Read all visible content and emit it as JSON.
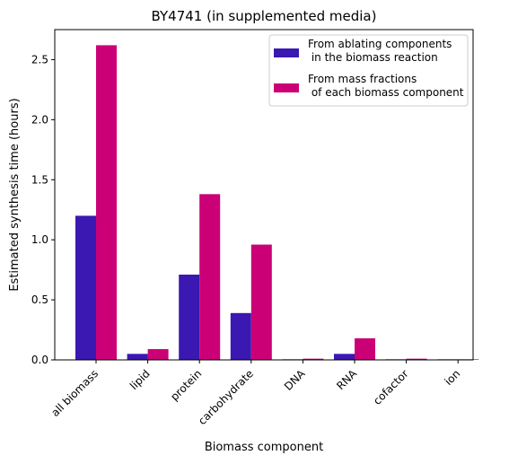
{
  "chart_data": {
    "type": "bar",
    "title": "BY4741 (in supplemented media)",
    "xlabel": "Biomass component",
    "ylabel": "Estimated synthesis time (hours)",
    "categories": [
      "all biomass",
      "lipid",
      "protein",
      "carbohydrate",
      "DNA",
      "RNA",
      "cofactor",
      "ion"
    ],
    "yticks": [
      "0.0",
      "0.5",
      "1.0",
      "1.5",
      "2.0",
      "2.5"
    ],
    "ylim": [
      0,
      2.75
    ],
    "series": [
      {
        "name": "From ablating components\n in the biomass reaction",
        "color": "#3a18b1",
        "values": [
          1.2,
          0.05,
          0.71,
          0.39,
          0.005,
          0.05,
          0.005,
          0.005
        ]
      },
      {
        "name": "From mass fractions\n of each biomass component",
        "color": "#cb0077",
        "values": [
          2.62,
          0.09,
          1.38,
          0.96,
          0.01,
          0.18,
          0.01,
          0.005
        ]
      }
    ],
    "legend_position": "top-right",
    "grid": false
  }
}
